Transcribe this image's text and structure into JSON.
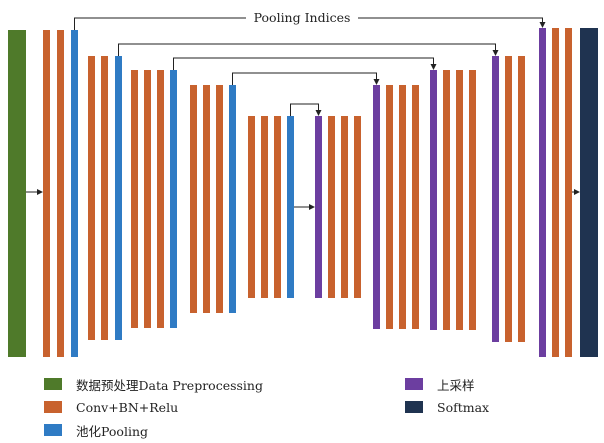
{
  "diagram": {
    "pooling_indices_label": "Pooling Indices"
  },
  "colors": {
    "preprocessing": "#4f7a2a",
    "conv": "#c8622e",
    "pooling": "#2f7bc4",
    "upsample": "#6c3ea0",
    "softmax": "#1f3350",
    "arrow": "#222222"
  },
  "legend": [
    {
      "key": "preprocessing",
      "label": "数据预处理Data Preprocessing"
    },
    {
      "key": "conv",
      "label": "Conv+BN+Relu"
    },
    {
      "key": "pooling",
      "label": "池化Pooling"
    },
    {
      "key": "upsample",
      "label": "上采样"
    },
    {
      "key": "softmax",
      "label": "Softmax"
    }
  ]
}
